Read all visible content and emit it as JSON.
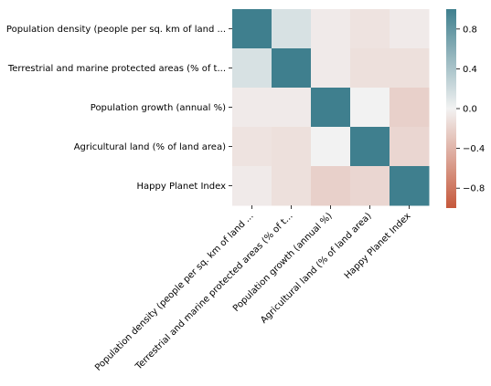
{
  "chart_data": {
    "type": "heatmap",
    "title": "",
    "xlabel": "",
    "ylabel": "",
    "row_labels": [
      "Population density (people per sq. km of land ...",
      "Terrestrial and marine protected areas (% of t...",
      "Population growth (annual %)",
      "Agricultural land (% of land area)",
      "Happy Planet Index"
    ],
    "col_labels": [
      "Population density (people per sq. km of land ...",
      "Terrestrial and marine protected areas (% of t...",
      "Population growth (annual %)",
      "Agricultural land (% of land area)",
      "Happy Planet Index"
    ],
    "values": [
      [
        1.0,
        0.15,
        -0.05,
        -0.1,
        -0.05
      ],
      [
        0.15,
        1.0,
        -0.05,
        -0.12,
        -0.12
      ],
      [
        -0.05,
        -0.05,
        1.0,
        0.0,
        -0.22
      ],
      [
        -0.1,
        -0.12,
        0.0,
        1.0,
        -0.18
      ],
      [
        -0.05,
        -0.12,
        -0.22,
        -0.18,
        1.0
      ]
    ],
    "vmin": -1.0,
    "vmax": 1.0,
    "colormap": {
      "low": "#c5583b",
      "mid": "#f2f2f2",
      "high": "#3f7f8e"
    },
    "colorbar": {
      "ticks": [
        0.8,
        0.4,
        0.0,
        -0.4,
        -0.8
      ],
      "tick_labels": [
        "0.8",
        "0.4",
        "0.0",
        "−0.4",
        "−0.8"
      ]
    }
  }
}
